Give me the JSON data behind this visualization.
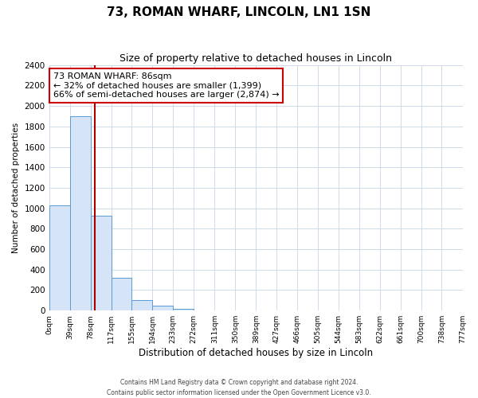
{
  "title": "73, ROMAN WHARF, LINCOLN, LN1 1SN",
  "subtitle": "Size of property relative to detached houses in Lincoln",
  "xlabel": "Distribution of detached houses by size in Lincoln",
  "ylabel": "Number of detached properties",
  "bar_edges": [
    0,
    39,
    78,
    117,
    155,
    194,
    233,
    272,
    311,
    350,
    389,
    427,
    466,
    505,
    544,
    583,
    622,
    661,
    700,
    738,
    777
  ],
  "bar_heights": [
    1025,
    1900,
    930,
    320,
    105,
    50,
    20,
    0,
    0,
    0,
    0,
    0,
    0,
    0,
    0,
    0,
    0,
    0,
    0,
    0
  ],
  "bar_color": "#d6e4f7",
  "bar_edge_color": "#5b9bd5",
  "property_line_x": 86,
  "property_line_color": "#aa0000",
  "ylim": [
    0,
    2400
  ],
  "yticks": [
    0,
    200,
    400,
    600,
    800,
    1000,
    1200,
    1400,
    1600,
    1800,
    2000,
    2200,
    2400
  ],
  "xtick_labels": [
    "0sqm",
    "39sqm",
    "78sqm",
    "117sqm",
    "155sqm",
    "194sqm",
    "233sqm",
    "272sqm",
    "311sqm",
    "350sqm",
    "389sqm",
    "427sqm",
    "466sqm",
    "505sqm",
    "544sqm",
    "583sqm",
    "622sqm",
    "661sqm",
    "700sqm",
    "738sqm",
    "777sqm"
  ],
  "annotation_line1": "73 ROMAN WHARF: 86sqm",
  "annotation_line2": "← 32% of detached houses are smaller (1,399)",
  "annotation_line3": "66% of semi-detached houses are larger (2,874) →",
  "annotation_box_edge_color": "#cc0000",
  "footer_line1": "Contains HM Land Registry data © Crown copyright and database right 2024.",
  "footer_line2": "Contains public sector information licensed under the Open Government Licence v3.0.",
  "background_color": "#ffffff",
  "grid_color": "#c8d4e8"
}
